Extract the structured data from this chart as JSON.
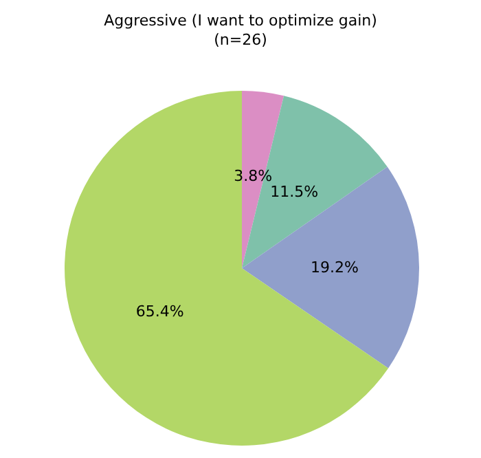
{
  "chart_data": {
    "type": "pie",
    "title": "Aggressive (I want to optimize gain)\n(n=26)",
    "categories": [
      null,
      null,
      null,
      null
    ],
    "values": [
      3.8,
      11.5,
      19.2,
      65.4
    ],
    "colors": [
      "#db8ec4",
      "#7fc1aa",
      "#909fcb",
      "#b3d767"
    ],
    "value_labels": [
      "3.8%",
      "11.5%",
      "19.2%",
      "65.4%"
    ]
  }
}
